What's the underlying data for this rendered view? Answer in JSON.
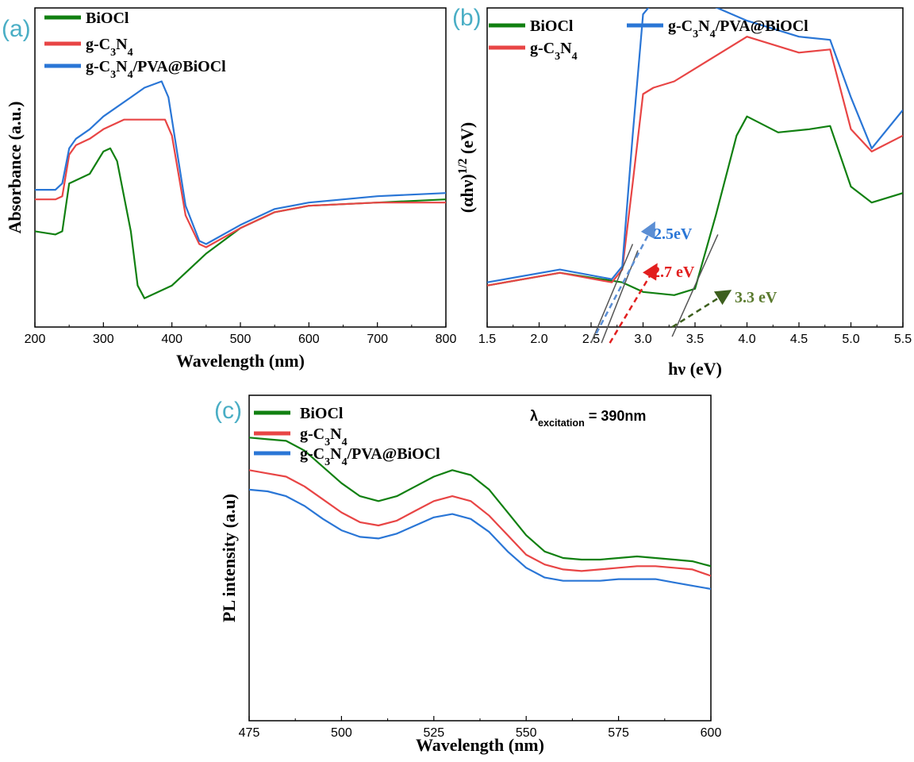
{
  "colors": {
    "BiOCl": "#118011",
    "gCN": "#e84545",
    "comp": "#2a76d6",
    "annot_green": "#5a7a2e",
    "panel": "#4aaec5"
  },
  "chart_data": [
    {
      "panel": "(a)",
      "type": "line",
      "xlabel": "Wavelength (nm)",
      "ylabel": "Absorbance (a.u.)",
      "xlim": [
        200,
        800
      ],
      "ylim": [
        0,
        1
      ],
      "xticks": [
        200,
        300,
        400,
        500,
        600,
        700,
        800
      ],
      "grid": false,
      "legend_position": "top-left",
      "series": [
        {
          "key": "BiOCl",
          "name_parts": [
            [
              "BiOCl",
              ""
            ]
          ],
          "x": [
            200,
            230,
            240,
            250,
            260,
            280,
            300,
            310,
            320,
            340,
            350,
            360,
            370,
            400,
            430,
            450,
            500,
            550,
            600,
            700,
            800
          ],
          "y": [
            0.3,
            0.29,
            0.3,
            0.45,
            0.46,
            0.48,
            0.55,
            0.56,
            0.52,
            0.3,
            0.13,
            0.09,
            0.1,
            0.13,
            0.19,
            0.23,
            0.31,
            0.36,
            0.38,
            0.39,
            0.4
          ]
        },
        {
          "key": "gCN",
          "name_parts": [
            [
              "g-C",
              ""
            ],
            [
              "3",
              "sub"
            ],
            [
              "N",
              ""
            ],
            [
              "4",
              "sub"
            ]
          ],
          "x": [
            200,
            230,
            240,
            250,
            260,
            280,
            300,
            330,
            360,
            390,
            400,
            420,
            440,
            450,
            500,
            550,
            600,
            700,
            800
          ],
          "y": [
            0.4,
            0.4,
            0.41,
            0.54,
            0.57,
            0.59,
            0.62,
            0.65,
            0.65,
            0.65,
            0.6,
            0.35,
            0.26,
            0.25,
            0.31,
            0.36,
            0.38,
            0.39,
            0.39
          ]
        },
        {
          "key": "comp",
          "name_parts": [
            [
              "g-C",
              ""
            ],
            [
              "3",
              "sub"
            ],
            [
              "N",
              ""
            ],
            [
              "4",
              "sub"
            ],
            [
              "/PVA@BiOCl",
              ""
            ]
          ],
          "x": [
            200,
            230,
            240,
            250,
            260,
            280,
            300,
            340,
            360,
            385,
            395,
            420,
            440,
            450,
            500,
            550,
            600,
            700,
            800
          ],
          "y": [
            0.43,
            0.43,
            0.45,
            0.56,
            0.59,
            0.62,
            0.66,
            0.72,
            0.75,
            0.77,
            0.72,
            0.38,
            0.27,
            0.26,
            0.32,
            0.37,
            0.39,
            0.41,
            0.42
          ]
        }
      ]
    },
    {
      "panel": "(b)",
      "type": "line",
      "xlabel": "hν (eV)",
      "ylabel_parts": [
        [
          "(αhν)",
          ""
        ],
        [
          "1/2",
          "sup"
        ],
        [
          " (eV)",
          ""
        ]
      ],
      "xlim": [
        1.5,
        5.5
      ],
      "ylim": [
        0,
        1
      ],
      "xticks": [
        1.5,
        2.0,
        2.5,
        3.0,
        3.5,
        4.0,
        4.5,
        5.0,
        5.5
      ],
      "grid": false,
      "legend_position": "top",
      "series": [
        {
          "key": "BiOCl",
          "name_parts": [
            [
              "BiOCl",
              ""
            ]
          ],
          "x": [
            1.5,
            2.2,
            2.8,
            3.0,
            3.3,
            3.5,
            3.7,
            3.9,
            4.0,
            4.3,
            4.6,
            4.8,
            5.0,
            5.2,
            5.5
          ],
          "y": [
            0.13,
            0.17,
            0.14,
            0.11,
            0.1,
            0.12,
            0.35,
            0.6,
            0.66,
            0.61,
            0.62,
            0.63,
            0.44,
            0.39,
            0.42
          ]
        },
        {
          "key": "gCN",
          "name_parts": [
            [
              "g-C",
              ""
            ],
            [
              "3",
              "sub"
            ],
            [
              "N",
              ""
            ],
            [
              "4",
              "sub"
            ]
          ],
          "x": [
            1.5,
            2.2,
            2.7,
            2.8,
            2.9,
            3.0,
            3.1,
            3.3,
            3.5,
            4.0,
            4.5,
            4.8,
            5.0,
            5.2,
            5.5
          ],
          "y": [
            0.13,
            0.17,
            0.14,
            0.18,
            0.45,
            0.73,
            0.75,
            0.77,
            0.81,
            0.91,
            0.86,
            0.87,
            0.62,
            0.55,
            0.6
          ]
        },
        {
          "key": "comp",
          "name_parts": [
            [
              "g-C",
              ""
            ],
            [
              "3",
              "sub"
            ],
            [
              "N",
              ""
            ],
            [
              "4",
              "sub"
            ],
            [
              "/PVA@BiOCl",
              ""
            ]
          ],
          "x": [
            1.5,
            2.2,
            2.7,
            2.8,
            2.9,
            3.0,
            3.1,
            3.3,
            3.5,
            4.0,
            4.5,
            4.8,
            5.0,
            5.2,
            5.5
          ],
          "y": [
            0.14,
            0.18,
            0.15,
            0.19,
            0.6,
            0.98,
            1.02,
            1.03,
            1.03,
            0.96,
            0.91,
            0.9,
            0.72,
            0.56,
            0.68
          ]
        }
      ],
      "annotations": [
        {
          "text": "2.5eV",
          "color": "#2a76d6"
        },
        {
          "text": "2.7 eV",
          "color": "#e21f1f"
        },
        {
          "text": "3.3 eV",
          "color": "#5a7a2e"
        }
      ],
      "tangents": [
        {
          "x1": 2.5,
          "y1": -0.05,
          "x2": 2.9,
          "y2": 0.26
        },
        {
          "x1": 2.6,
          "y1": -0.05,
          "x2": 2.95,
          "y2": 0.24
        },
        {
          "x1": 3.28,
          "y1": -0.03,
          "x2": 3.72,
          "y2": 0.29
        }
      ],
      "arrows": [
        {
          "x1": 2.55,
          "y1": -0.02,
          "x2": 3.1,
          "y2": 0.32,
          "color": "#5b8ed4"
        },
        {
          "x1": 2.68,
          "y1": -0.05,
          "x2": 3.12,
          "y2": 0.19,
          "color": "#e21f1f"
        },
        {
          "x1": 3.28,
          "y1": 0.0,
          "x2": 3.82,
          "y2": 0.11,
          "color": "#3d5f1e"
        }
      ]
    },
    {
      "panel": "(c)",
      "type": "line",
      "xlabel": "Wavelength (nm)",
      "ylabel": "PL intensity (a.u)",
      "xlim": [
        475,
        600
      ],
      "ylim": [
        0,
        1
      ],
      "xticks": [
        475,
        500,
        525,
        550,
        575,
        600
      ],
      "grid": false,
      "legend_position": "top-left",
      "series": [
        {
          "key": "BiOCl",
          "name_parts": [
            [
              "BiOCl",
              ""
            ]
          ],
          "x": [
            475,
            480,
            485,
            490,
            495,
            500,
            505,
            510,
            515,
            520,
            525,
            530,
            535,
            540,
            545,
            550,
            555,
            560,
            565,
            570,
            575,
            580,
            585,
            590,
            595,
            600
          ],
          "y": [
            0.87,
            0.865,
            0.86,
            0.83,
            0.78,
            0.73,
            0.69,
            0.675,
            0.69,
            0.72,
            0.75,
            0.77,
            0.755,
            0.71,
            0.64,
            0.57,
            0.52,
            0.5,
            0.495,
            0.495,
            0.5,
            0.505,
            0.5,
            0.495,
            0.49,
            0.475
          ]
        },
        {
          "key": "gCN",
          "name_parts": [
            [
              "g-C",
              ""
            ],
            [
              "3",
              "sub"
            ],
            [
              "N",
              ""
            ],
            [
              "4",
              "sub"
            ]
          ],
          "x": [
            475,
            480,
            485,
            490,
            495,
            500,
            505,
            510,
            515,
            520,
            525,
            530,
            535,
            540,
            545,
            550,
            555,
            560,
            565,
            570,
            575,
            580,
            585,
            590,
            595,
            600
          ],
          "y": [
            0.77,
            0.76,
            0.75,
            0.72,
            0.68,
            0.64,
            0.61,
            0.6,
            0.615,
            0.645,
            0.675,
            0.69,
            0.675,
            0.63,
            0.57,
            0.51,
            0.48,
            0.465,
            0.46,
            0.465,
            0.47,
            0.475,
            0.475,
            0.47,
            0.465,
            0.445
          ]
        },
        {
          "key": "comp",
          "name_parts": [
            [
              "g-C",
              ""
            ],
            [
              "3",
              "sub"
            ],
            [
              "N",
              ""
            ],
            [
              "4",
              "sub"
            ],
            [
              "/PVA@BiOCl",
              ""
            ]
          ],
          "x": [
            475,
            480,
            485,
            490,
            495,
            500,
            505,
            510,
            515,
            520,
            525,
            530,
            535,
            540,
            545,
            550,
            555,
            560,
            565,
            570,
            575,
            580,
            585,
            590,
            595,
            600
          ],
          "y": [
            0.71,
            0.705,
            0.69,
            0.66,
            0.62,
            0.585,
            0.565,
            0.56,
            0.575,
            0.6,
            0.625,
            0.635,
            0.62,
            0.58,
            0.52,
            0.47,
            0.44,
            0.43,
            0.43,
            0.43,
            0.435,
            0.435,
            0.435,
            0.425,
            0.415,
            0.405
          ]
        }
      ],
      "excitation_label_parts": [
        [
          "λ",
          ""
        ],
        [
          "excitation",
          "sub"
        ],
        [
          " = 390nm",
          ""
        ]
      ]
    }
  ]
}
